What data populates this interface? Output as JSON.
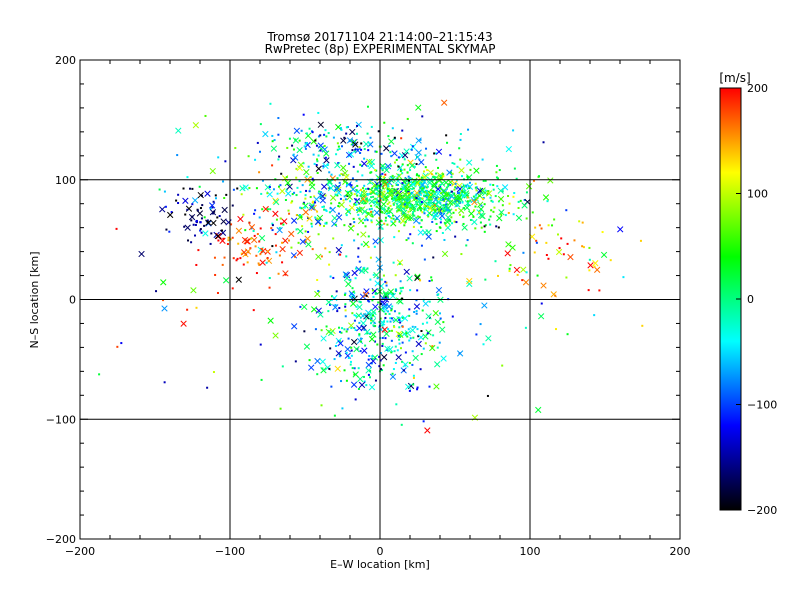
{
  "chart_data": {
    "type": "scatter",
    "title": "Tromsø 20171104 21:14:00–21:15:43",
    "subtitle": "RwPretec (8p) EXPERIMENTAL SKYMAP",
    "xlabel": "E–W location [km]",
    "ylabel": "N–S location [km]",
    "xlim": [
      -200,
      200
    ],
    "ylim": [
      -200,
      200
    ],
    "x_ticks": [
      -200,
      -100,
      0,
      100,
      200
    ],
    "y_ticks": [
      -200,
      -100,
      0,
      100,
      200
    ],
    "x_tick_labels": [
      "−200",
      "−100",
      "0",
      "100",
      "200"
    ],
    "y_tick_labels": [
      "−200",
      "−100",
      "0",
      "100",
      "200"
    ],
    "grid": true,
    "grid_lines": [
      -100,
      0,
      100
    ],
    "colorbar": {
      "label": "[m/s]",
      "range": [
        -200,
        200
      ],
      "ticks": [
        200,
        100,
        0,
        -100,
        -200
      ],
      "tick_labels": [
        "200",
        "100",
        "0",
        "−100",
        "−200"
      ],
      "colors": [
        "#ff0000",
        "#ffff00",
        "#00ff00",
        "#00ffff",
        "#0000ff",
        "#000000"
      ]
    },
    "markers": {
      "small": "dot",
      "large": "x"
    },
    "clusters": [
      {
        "center": [
          30,
          85
        ],
        "spread": [
          45,
          22
        ],
        "count": 600,
        "velocity_mean": 20,
        "velocity_sd": 55
      },
      {
        "center": [
          -10,
          85
        ],
        "spread": [
          75,
          28
        ],
        "count": 450,
        "velocity_mean": 0,
        "velocity_sd": 80
      },
      {
        "center": [
          0,
          -20
        ],
        "spread": [
          38,
          45
        ],
        "count": 400,
        "velocity_mean": -40,
        "velocity_sd": 60
      },
      {
        "center": [
          -20,
          130
        ],
        "spread": [
          60,
          20
        ],
        "count": 170,
        "velocity_mean": -60,
        "velocity_sd": 80
      },
      {
        "center": [
          -120,
          70
        ],
        "spread": [
          20,
          20
        ],
        "count": 70,
        "velocity_mean": -170,
        "velocity_sd": 30
      },
      {
        "center": [
          -80,
          40
        ],
        "spread": [
          30,
          22
        ],
        "count": 80,
        "velocity_mean": 180,
        "velocity_sd": 30
      },
      {
        "center": [
          120,
          40
        ],
        "spread": [
          30,
          30
        ],
        "count": 50,
        "velocity_mean": 150,
        "velocity_sd": 60
      },
      {
        "center": [
          0,
          20
        ],
        "spread": [
          150,
          100
        ],
        "count": 160,
        "velocity_mean": 0,
        "velocity_sd": 110
      }
    ]
  }
}
